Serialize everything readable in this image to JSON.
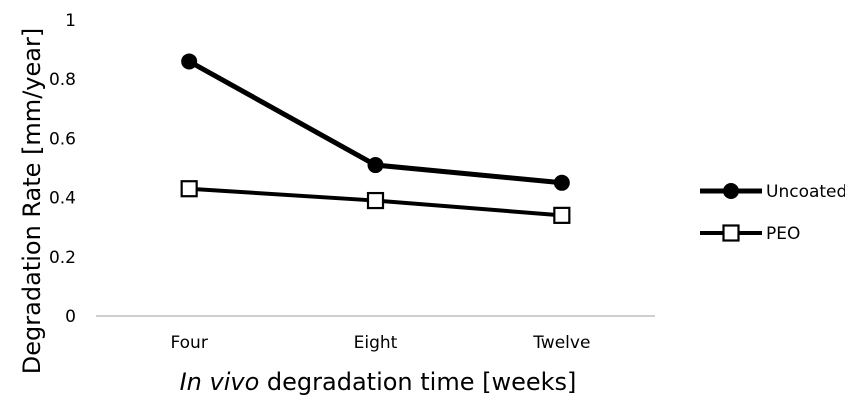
{
  "chart_data": {
    "type": "line",
    "title": "",
    "xlabel_italic": "In vivo",
    "xlabel_rest": " degradation time [weeks]",
    "ylabel": "Degradation Rate [mm/year]",
    "categories": [
      "Four",
      "Eight",
      "Twelve"
    ],
    "ylim": [
      0,
      1
    ],
    "yticks": [
      "0",
      "0.2",
      "0.4",
      "0.6",
      "0.8",
      "1"
    ],
    "grid": false,
    "legend_position": "right",
    "series": [
      {
        "name": "Uncoated",
        "marker": "filled-circle",
        "color": "#000000",
        "values": [
          0.86,
          0.51,
          0.45
        ]
      },
      {
        "name": "PEO",
        "marker": "hollow-square",
        "color": "#000000",
        "values": [
          0.43,
          0.39,
          0.34
        ]
      }
    ]
  }
}
